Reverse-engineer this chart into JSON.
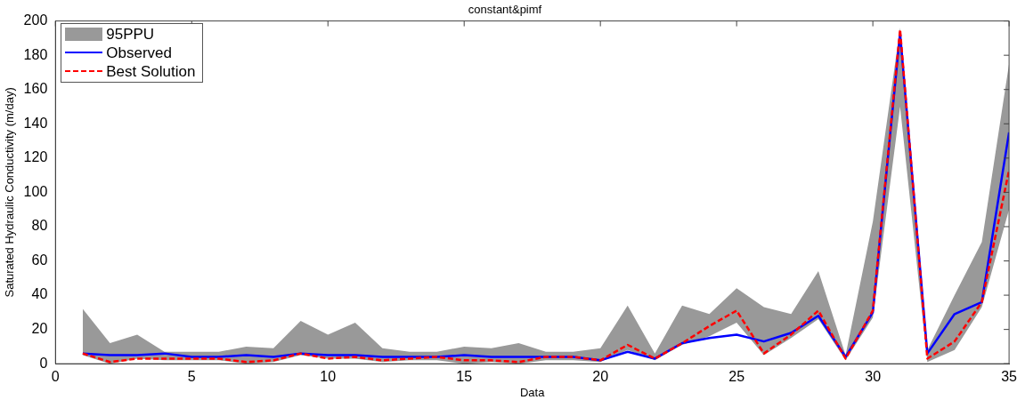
{
  "chart_data": {
    "type": "line",
    "title": "constant&pimf",
    "xlabel": "Data",
    "ylabel": "Saturated Hydraulic Conductivity (m/day)",
    "x": [
      1,
      2,
      3,
      4,
      5,
      6,
      7,
      8,
      9,
      10,
      11,
      12,
      13,
      14,
      15,
      16,
      17,
      18,
      19,
      20,
      21,
      22,
      23,
      24,
      25,
      26,
      27,
      28,
      29,
      30,
      31,
      32,
      33,
      34,
      35
    ],
    "series": [
      {
        "name": "95PPU",
        "color": "#999999",
        "values": [
          null,
          null,
          null,
          null,
          null,
          null,
          null,
          null,
          null,
          null,
          null,
          null,
          null,
          null,
          null,
          null,
          null,
          null,
          null,
          null,
          null,
          null,
          null,
          null,
          null,
          null,
          null,
          null,
          null,
          null,
          null,
          null,
          null,
          null,
          null
        ],
        "lower": [
          5,
          0,
          3,
          2,
          2,
          2,
          0,
          1,
          5,
          3,
          3,
          1,
          2,
          2,
          0,
          1,
          0,
          2,
          2,
          1,
          8,
          2,
          11,
          16,
          24,
          5,
          15,
          26,
          2,
          27,
          150,
          1,
          8,
          33,
          90
        ],
        "upper": [
          32,
          12,
          17,
          7,
          7,
          7,
          10,
          9,
          25,
          17,
          24,
          9,
          7,
          7,
          10,
          9,
          12,
          7,
          7,
          9,
          34,
          6,
          34,
          29,
          44,
          33,
          29,
          54,
          5,
          83,
          196,
          8,
          40,
          71,
          175
        ]
      },
      {
        "name": "Observed",
        "color": "#0000ff",
        "line_style": "solid",
        "values": [
          6,
          5,
          5,
          6,
          4,
          4,
          5,
          4,
          6,
          5,
          5,
          4,
          4,
          4,
          5,
          4,
          4,
          4,
          4,
          2,
          7,
          3,
          12,
          15,
          17,
          13,
          18,
          28,
          4,
          30,
          193,
          6,
          29,
          36,
          135
        ]
      },
      {
        "name": "Best Solution",
        "color": "#ff0000",
        "line_style": "dashed",
        "values": [
          6,
          1,
          3,
          3,
          3,
          3,
          1,
          2,
          6,
          3,
          4,
          2,
          3,
          4,
          2,
          2,
          1,
          4,
          4,
          2,
          11,
          3,
          12,
          22,
          31,
          6,
          17,
          31,
          3,
          31,
          195,
          3,
          13,
          36,
          113
        ]
      }
    ],
    "xlim": [
      0,
      35
    ],
    "xticks": [
      0,
      5,
      10,
      15,
      20,
      25,
      30,
      35
    ],
    "ylim": [
      0,
      200
    ],
    "yticks": [
      0,
      20,
      40,
      60,
      80,
      100,
      120,
      140,
      160,
      180,
      200
    ],
    "grid": false,
    "legend": "top left",
    "marker": "none"
  }
}
